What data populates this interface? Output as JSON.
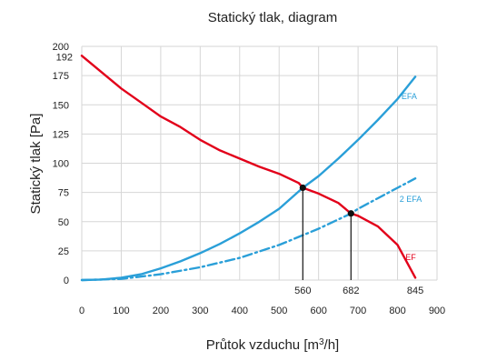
{
  "chart_data": {
    "type": "line",
    "title": "Statický tlak, diagram",
    "xlabel": "Průtok vzduchu [m",
    "xlabel_sup": "3",
    "xlabel_tail": "/h]",
    "ylabel": "Statický tlak [Pa]",
    "xlim": [
      0,
      900
    ],
    "ylim": [
      0,
      200
    ],
    "xticks": [
      0,
      100,
      200,
      300,
      400,
      500,
      600,
      700,
      800,
      900
    ],
    "yticks": [
      0,
      25,
      50,
      75,
      100,
      125,
      150,
      175,
      200
    ],
    "grid": true,
    "extra_y_label": {
      "value": 192,
      "text": "192"
    },
    "series": [
      {
        "name": "EF",
        "color": "#e2001a",
        "style": "solid",
        "x": [
          0,
          50,
          100,
          150,
          200,
          250,
          300,
          350,
          400,
          450,
          500,
          550,
          560,
          600,
          650,
          682,
          700,
          750,
          800,
          845
        ],
        "y": [
          192,
          178,
          164,
          152,
          140,
          131,
          120,
          111,
          104,
          97,
          91,
          83,
          79,
          74,
          66,
          57,
          55,
          46,
          30,
          2
        ]
      },
      {
        "name": "EFA",
        "color": "#2a9fd8",
        "style": "solid",
        "x": [
          0,
          50,
          100,
          150,
          200,
          250,
          300,
          350,
          400,
          450,
          500,
          560,
          600,
          650,
          700,
          750,
          800,
          845
        ],
        "y": [
          0,
          0.5,
          2,
          5,
          10,
          16,
          23,
          31,
          40,
          50,
          61,
          79,
          89,
          104,
          120,
          137,
          155,
          174
        ]
      },
      {
        "name": "2 EFA",
        "color": "#2a9fd8",
        "style": "dashdot",
        "x": [
          0,
          100,
          200,
          300,
          400,
          500,
          600,
          682,
          700,
          800,
          845
        ],
        "y": [
          0,
          1,
          5,
          11,
          19,
          30,
          44,
          57,
          61,
          79,
          87
        ]
      }
    ],
    "operating_points": [
      {
        "x": 560,
        "y": 79,
        "label": "560"
      },
      {
        "x": 682,
        "y": 57,
        "label": "682"
      },
      {
        "x": 845,
        "y": 0,
        "label": "845"
      }
    ]
  }
}
